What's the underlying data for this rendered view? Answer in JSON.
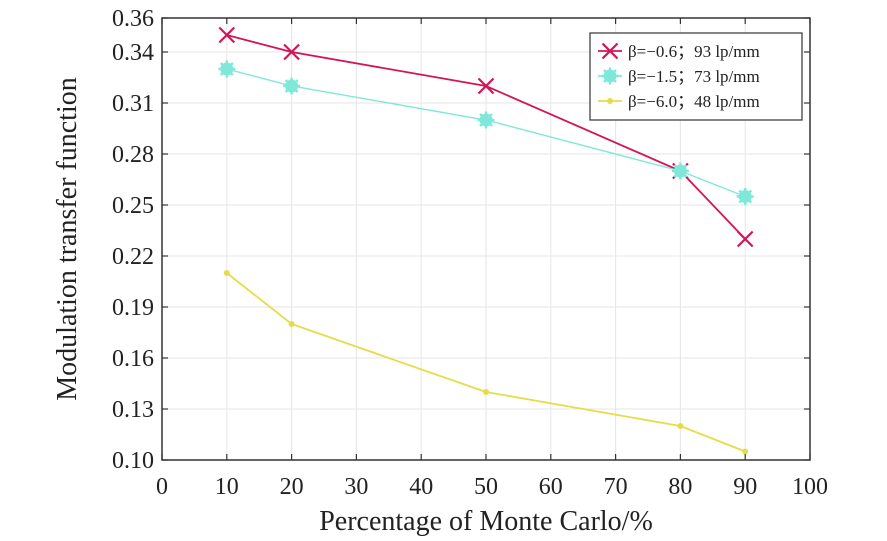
{
  "chart_data": {
    "type": "line",
    "title": "",
    "xlabel": "Percentage of Monte Carlo/%",
    "ylabel": "Modulation transfer function",
    "xlim": [
      0,
      100
    ],
    "ylim": [
      0.1,
      0.36
    ],
    "x_ticks": [
      "0",
      "10",
      "20",
      "30",
      "40",
      "50",
      "60",
      "70",
      "80",
      "90",
      "100"
    ],
    "y_ticks": [
      "0.10",
      "0.13",
      "0.16",
      "0.19",
      "0.22",
      "0.25",
      "0.28",
      "0.31",
      "0.34",
      "0.36"
    ],
    "grid": true,
    "legend_position": "top-right",
    "series": [
      {
        "name": "β=−0.6；93 lp/mm",
        "color": "#d4145a",
        "marker": "x",
        "x": [
          10,
          20,
          50,
          80,
          90
        ],
        "y": [
          0.35,
          0.34,
          0.32,
          0.27,
          0.23
        ]
      },
      {
        "name": "β=−1.5；73 lp/mm",
        "color": "#7fe8d8",
        "marker": "star",
        "x": [
          10,
          20,
          50,
          80,
          90
        ],
        "y": [
          0.33,
          0.32,
          0.3,
          0.27,
          0.255
        ]
      },
      {
        "name": "β=−6.0；48 lp/mm",
        "color": "#e6dc4a",
        "marker": "dot",
        "x": [
          10,
          20,
          50,
          80,
          90
        ],
        "y": [
          0.21,
          0.18,
          0.14,
          0.12,
          0.105
        ]
      }
    ]
  }
}
